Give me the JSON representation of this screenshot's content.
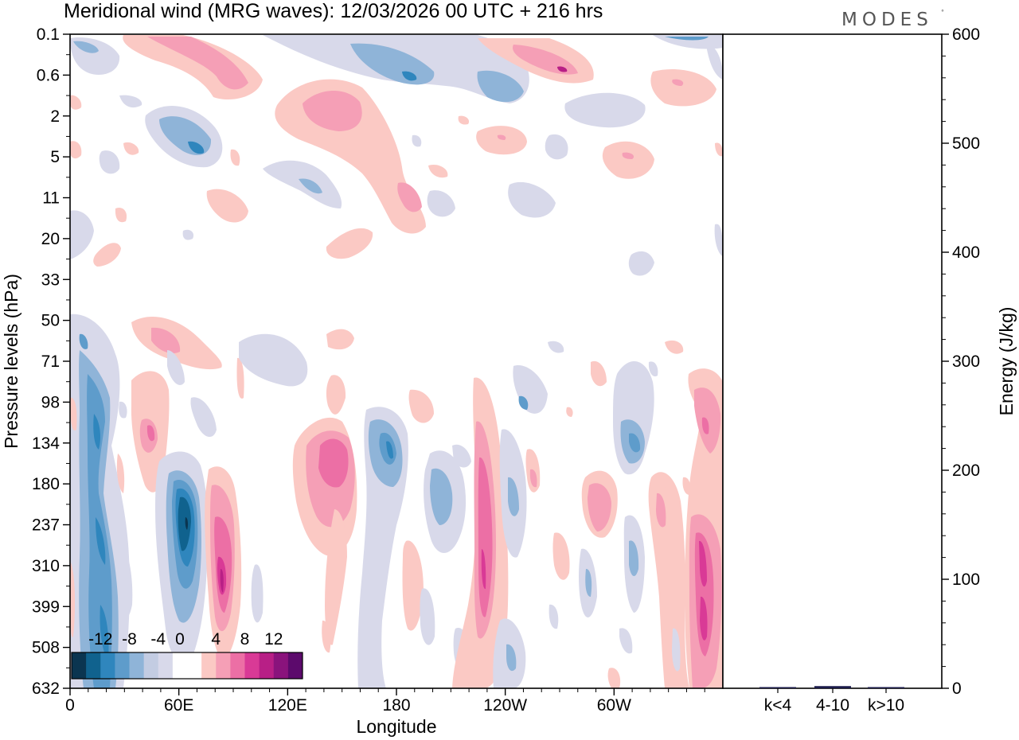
{
  "chart_data": {
    "type": "heatmap",
    "title": "Meridional wind (MRG waves):  12/03/2026  00 UTC  + 216 hrs",
    "logo": "MODES",
    "xlabel": "Longitude",
    "ylabel": "Pressure levels (hPa)",
    "x_ticks": [
      "0",
      "60E",
      "120E",
      "180",
      "120W",
      "60W"
    ],
    "x_tick_values": [
      0,
      60,
      120,
      180,
      240,
      300
    ],
    "xlim": [
      0,
      360
    ],
    "y_ticks": [
      "0.1",
      "0.6",
      "2",
      "5",
      "11",
      "20",
      "33",
      "50",
      "71",
      "98",
      "134",
      "180",
      "237",
      "310",
      "399",
      "508",
      "632"
    ],
    "colorbar": {
      "labels": [
        "-12",
        "-8",
        "-4",
        "0",
        "4",
        "8",
        "12"
      ],
      "levels": [
        -14,
        -12,
        -10,
        -8,
        -6,
        -4,
        -2,
        2,
        4,
        6,
        8,
        10,
        12,
        14
      ],
      "colors": [
        "#0b3550",
        "#10628e",
        "#2f86bd",
        "#5e9ccb",
        "#8fb4d8",
        "#c3cce2",
        "#d8d9ea",
        "#ffffff",
        "#ffffff",
        "#fbc9c4",
        "#f59fb6",
        "#ec6fa5",
        "#d93a96",
        "#b81f86",
        "#8a137c",
        "#5c0a6c"
      ]
    },
    "contour_features": [
      {
        "lon": 10,
        "level": "0.6",
        "value": -4
      },
      {
        "lon": 55,
        "level": "5",
        "value": -6
      },
      {
        "lon": 75,
        "level": "0.6",
        "value": 6
      },
      {
        "lon": 150,
        "level": "2",
        "value": 6
      },
      {
        "lon": 190,
        "level": "0.6",
        "value": -6
      },
      {
        "lon": 270,
        "level": "0.6",
        "value": 6
      },
      {
        "lon": 60,
        "level": "71",
        "value": 6
      },
      {
        "lon": 15,
        "level": "237",
        "value": -8
      },
      {
        "lon": 20,
        "level": "399",
        "value": -6
      },
      {
        "lon": 43,
        "level": "134",
        "value": 6
      },
      {
        "lon": 65,
        "level": "237",
        "value": -12
      },
      {
        "lon": 83,
        "level": "310",
        "value": 10
      },
      {
        "lon": 148,
        "level": "134",
        "value": 8
      },
      {
        "lon": 177,
        "level": "134",
        "value": -8
      },
      {
        "lon": 203,
        "level": "180",
        "value": -6
      },
      {
        "lon": 228,
        "level": "310",
        "value": 8
      },
      {
        "lon": 246,
        "level": "508",
        "value": -6
      },
      {
        "lon": 287,
        "level": "180",
        "value": 6
      },
      {
        "lon": 312,
        "level": "134",
        "value": -6
      },
      {
        "lon": 348,
        "level": "399",
        "value": 8
      },
      {
        "lon": 350,
        "level": "134",
        "value": 6
      }
    ],
    "energy_panel": {
      "ylabel": "Energy (J/kg)",
      "ylim": [
        0,
        600
      ],
      "y_ticks": [
        0,
        100,
        200,
        300,
        400,
        500,
        600
      ],
      "categories": [
        "k<4",
        "4-10",
        "k>10"
      ],
      "values": [
        0.5,
        2,
        0.3
      ],
      "bar_color": "#1a1a4a"
    }
  }
}
